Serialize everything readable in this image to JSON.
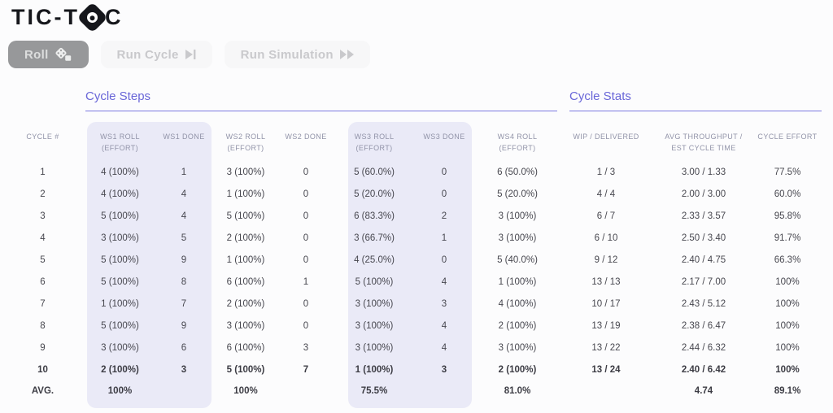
{
  "app": {
    "logo_prefix": "TIC-T",
    "logo_suffix": "C"
  },
  "toolbar": {
    "roll_label": "Roll",
    "run_cycle_label": "Run Cycle",
    "run_simulation_label": "Run Simulation"
  },
  "sections": {
    "steps_title": "Cycle Steps",
    "stats_title": "Cycle Stats"
  },
  "table": {
    "headers": {
      "cycle": "CYCLE #",
      "ws1_roll": "WS1 ROLL\n(EFFORT)",
      "ws1_done": "WS1 DONE",
      "ws2_roll": "WS2 ROLL\n(EFFORT)",
      "ws2_done": "WS2 DONE",
      "ws3_roll": "WS3 ROLL\n(EFFORT)",
      "ws3_done": "WS3 DONE",
      "ws4_roll": "WS4 ROLL\n(EFFORT)",
      "wip_delivered": "WIP / DELIVERED",
      "avg_throughput": "AVG THROUGHPUT /\nEST CYCLE TIME",
      "cycle_effort": "CYCLE EFFORT"
    },
    "rows": [
      {
        "cycle": "1",
        "ws1_roll": "4 (100%)",
        "ws1_done": "1",
        "ws2_roll": "3 (100%)",
        "ws2_done": "0",
        "ws3_roll": "5 (60.0%)",
        "ws3_done": "0",
        "ws4_roll": "6 (50.0%)",
        "wip_delivered": "1 / 3",
        "avg_throughput": "3.00 / 1.33",
        "cycle_effort": "77.5%"
      },
      {
        "cycle": "2",
        "ws1_roll": "4 (100%)",
        "ws1_done": "4",
        "ws2_roll": "1 (100%)",
        "ws2_done": "0",
        "ws3_roll": "5 (20.0%)",
        "ws3_done": "0",
        "ws4_roll": "5 (20.0%)",
        "wip_delivered": "4 / 4",
        "avg_throughput": "2.00 / 3.00",
        "cycle_effort": "60.0%"
      },
      {
        "cycle": "3",
        "ws1_roll": "5 (100%)",
        "ws1_done": "4",
        "ws2_roll": "5 (100%)",
        "ws2_done": "0",
        "ws3_roll": "6 (83.3%)",
        "ws3_done": "2",
        "ws4_roll": "3 (100%)",
        "wip_delivered": "6 / 7",
        "avg_throughput": "2.33 / 3.57",
        "cycle_effort": "95.8%"
      },
      {
        "cycle": "4",
        "ws1_roll": "3 (100%)",
        "ws1_done": "5",
        "ws2_roll": "2 (100%)",
        "ws2_done": "0",
        "ws3_roll": "3 (66.7%)",
        "ws3_done": "1",
        "ws4_roll": "3 (100%)",
        "wip_delivered": "6 / 10",
        "avg_throughput": "2.50 / 3.40",
        "cycle_effort": "91.7%"
      },
      {
        "cycle": "5",
        "ws1_roll": "5 (100%)",
        "ws1_done": "9",
        "ws2_roll": "1 (100%)",
        "ws2_done": "0",
        "ws3_roll": "4 (25.0%)",
        "ws3_done": "0",
        "ws4_roll": "5 (40.0%)",
        "wip_delivered": "9 / 12",
        "avg_throughput": "2.40 / 4.75",
        "cycle_effort": "66.3%"
      },
      {
        "cycle": "6",
        "ws1_roll": "5 (100%)",
        "ws1_done": "8",
        "ws2_roll": "6 (100%)",
        "ws2_done": "1",
        "ws3_roll": "5 (100%)",
        "ws3_done": "4",
        "ws4_roll": "1 (100%)",
        "wip_delivered": "13 / 13",
        "avg_throughput": "2.17 / 7.00",
        "cycle_effort": "100%"
      },
      {
        "cycle": "7",
        "ws1_roll": "1 (100%)",
        "ws1_done": "7",
        "ws2_roll": "2 (100%)",
        "ws2_done": "0",
        "ws3_roll": "3 (100%)",
        "ws3_done": "3",
        "ws4_roll": "4 (100%)",
        "wip_delivered": "10 / 17",
        "avg_throughput": "2.43 / 5.12",
        "cycle_effort": "100%"
      },
      {
        "cycle": "8",
        "ws1_roll": "5 (100%)",
        "ws1_done": "9",
        "ws2_roll": "3 (100%)",
        "ws2_done": "0",
        "ws3_roll": "3 (100%)",
        "ws3_done": "4",
        "ws4_roll": "2 (100%)",
        "wip_delivered": "13 / 19",
        "avg_throughput": "2.38 / 6.47",
        "cycle_effort": "100%"
      },
      {
        "cycle": "9",
        "ws1_roll": "3 (100%)",
        "ws1_done": "6",
        "ws2_roll": "6 (100%)",
        "ws2_done": "3",
        "ws3_roll": "3 (100%)",
        "ws3_done": "4",
        "ws4_roll": "3 (100%)",
        "wip_delivered": "13 / 22",
        "avg_throughput": "2.44 / 6.32",
        "cycle_effort": "100%"
      },
      {
        "cycle": "10",
        "ws1_roll": "2 (100%)",
        "ws1_done": "3",
        "ws2_roll": "5 (100%)",
        "ws2_done": "7",
        "ws3_roll": "1 (100%)",
        "ws3_done": "3",
        "ws4_roll": "2 (100%)",
        "wip_delivered": "13 / 24",
        "avg_throughput": "2.40 / 6.42",
        "cycle_effort": "100%",
        "emphasized": true
      }
    ],
    "avg_row": {
      "cycle": "AVG.",
      "ws1_roll": "100%",
      "ws1_done": "",
      "ws2_roll": "100%",
      "ws2_done": "",
      "ws3_roll": "75.5%",
      "ws3_done": "",
      "ws4_roll": "81.0%",
      "wip_delivered": "",
      "avg_throughput": "4.74",
      "cycle_effort": "89.1%"
    }
  },
  "colors": {
    "accent": "#6966d8",
    "column_highlight": "#eaeaf7",
    "active_button_bg": "#97989a",
    "active_button_text": "#dcdddd",
    "inactive_button_bg": "#f7f7f8",
    "inactive_button_text": "#c9c9cc",
    "logo": "#15161b",
    "header_text": "#9193a8",
    "body_text": "#47474f"
  }
}
